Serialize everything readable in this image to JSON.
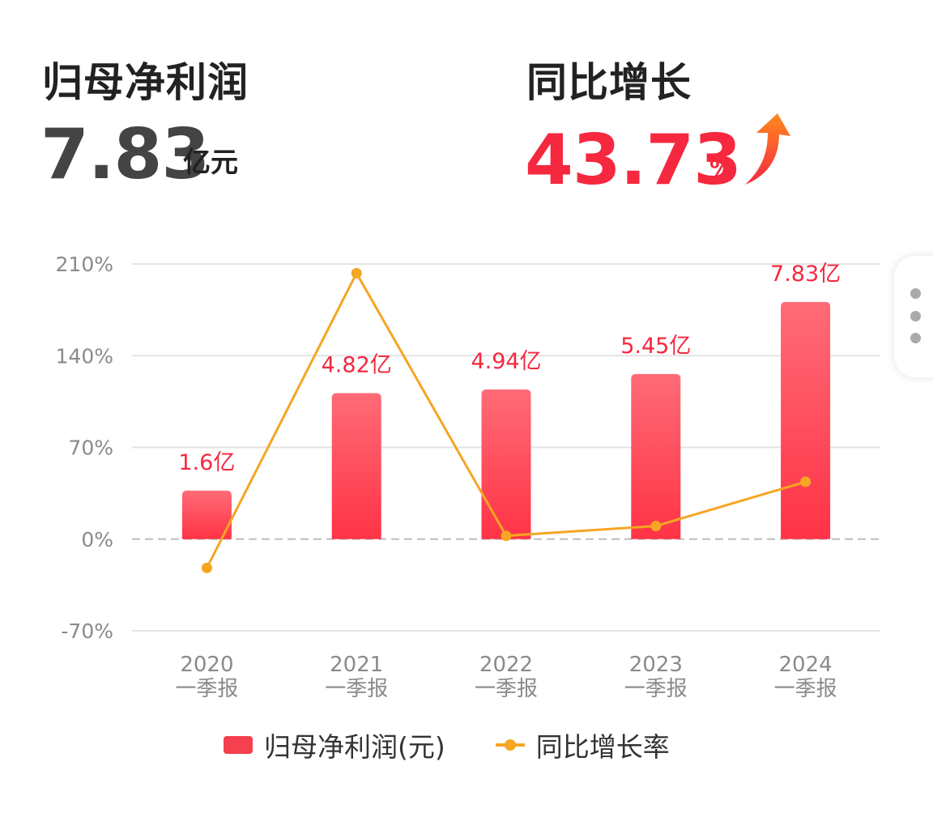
{
  "kpi": {
    "profit": {
      "label": "归母净利润",
      "value": "7.83",
      "unit": "亿元"
    },
    "growth": {
      "label": "同比增长",
      "value": "43.73",
      "unit": "%",
      "direction": "up"
    }
  },
  "colors": {
    "accent_red": "#f5283f",
    "bar_top": "#ff6b77",
    "bar_bottom": "#ff3346",
    "line": "#f5a623",
    "grid": "#e3e3e3",
    "text_gray": "#8a8a8a"
  },
  "chart_data": {
    "type": "bar",
    "categories": [
      [
        "2020",
        "一季报"
      ],
      [
        "2021",
        "一季报"
      ],
      [
        "2022",
        "一季报"
      ],
      [
        "2023",
        "一季报"
      ],
      [
        "2024",
        "一季报"
      ]
    ],
    "series": [
      {
        "name": "归母净利润(元)",
        "type": "bar",
        "values": [
          1.6,
          4.82,
          4.94,
          5.45,
          7.83
        ],
        "labels": [
          "1.6亿",
          "4.82亿",
          "4.94亿",
          "5.45亿",
          "7.83亿"
        ]
      },
      {
        "name": "同比增长率",
        "type": "line",
        "values": [
          -22,
          203,
          2.5,
          10,
          43.73
        ]
      }
    ],
    "y_ticks": [
      "210%",
      "140%",
      "70%",
      "0%",
      "-70%"
    ],
    "ylim": [
      -70,
      210
    ],
    "grid": true,
    "legend_position": "bottom"
  },
  "legend": {
    "bar_label": "归母净利润(元)",
    "line_label": "同比增长率"
  }
}
